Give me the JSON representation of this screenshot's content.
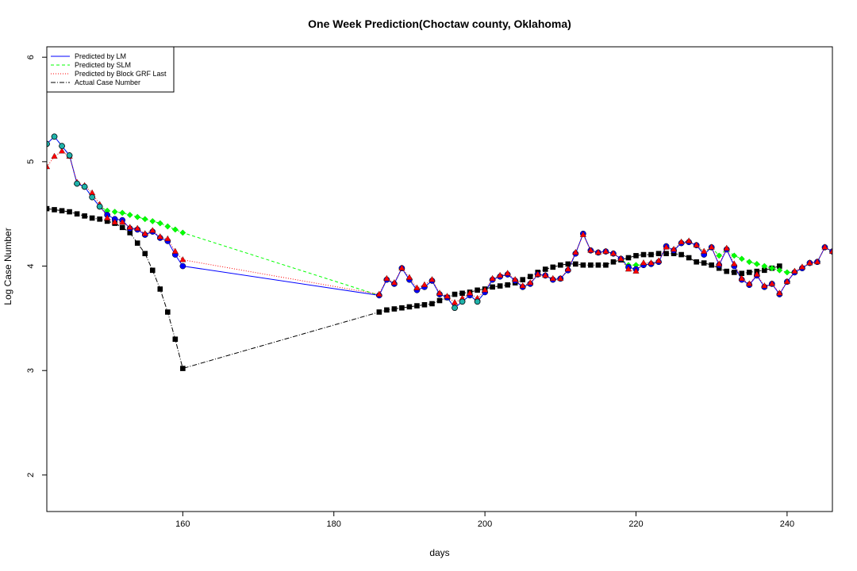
{
  "chart_data": {
    "type": "line",
    "title": "One Week Prediction(Choctaw county, Oklahoma)",
    "xlabel": "days",
    "ylabel": "Log Case Number",
    "xlim": [
      142,
      246
    ],
    "ylim": [
      1.65,
      6.1
    ],
    "xticks": [
      160,
      180,
      200,
      220,
      240
    ],
    "yticks": [
      2,
      3,
      4,
      5,
      6
    ],
    "legend_position": "top-left",
    "legend": [
      {
        "label": "Predicted by LM",
        "color": "#0000ff",
        "dash": "solid"
      },
      {
        "label": "Predicted by SLM",
        "color": "#00ff00",
        "dash": "dashed"
      },
      {
        "label": "Predicted by Block GRF Last",
        "color": "#ff0000",
        "dash": "dotted"
      },
      {
        "label": "Actual Case Number",
        "color": "#000000",
        "dash": "dotdash"
      }
    ],
    "series": [
      {
        "name": "Predicted by LM",
        "color": "#0000ff",
        "marker": "circle",
        "dash": "solid",
        "x": [
          142,
          143,
          144,
          145,
          146,
          147,
          148,
          149,
          150,
          151,
          152,
          153,
          154,
          155,
          156,
          157,
          158,
          159,
          160,
          186,
          187,
          188,
          189,
          190,
          191,
          192,
          193,
          194,
          195,
          196,
          197,
          198,
          199,
          200,
          201,
          202,
          203,
          204,
          205,
          206,
          207,
          208,
          209,
          210,
          211,
          212,
          213,
          214,
          215,
          216,
          217,
          218,
          219,
          220,
          221,
          222,
          223,
          224,
          225,
          226,
          227,
          228,
          229,
          230,
          231,
          232,
          233,
          234,
          235,
          236,
          237,
          238,
          239,
          240,
          241,
          242,
          243,
          244,
          245,
          246
        ],
        "y": [
          5.17,
          5.24,
          5.15,
          5.06,
          4.79,
          4.76,
          4.66,
          4.57,
          4.49,
          4.45,
          4.44,
          4.36,
          4.35,
          4.3,
          4.33,
          4.27,
          4.24,
          4.11,
          4.0,
          3.72,
          3.87,
          3.83,
          3.98,
          3.87,
          3.77,
          3.8,
          3.86,
          3.73,
          3.7,
          3.6,
          3.66,
          3.72,
          3.66,
          3.75,
          3.87,
          3.9,
          3.92,
          3.86,
          3.8,
          3.83,
          3.92,
          3.91,
          3.87,
          3.88,
          3.96,
          4.12,
          4.31,
          4.15,
          4.13,
          4.14,
          4.12,
          4.07,
          3.99,
          3.97,
          4.01,
          4.02,
          4.04,
          4.19,
          4.15,
          4.22,
          4.23,
          4.2,
          4.11,
          4.18,
          4.01,
          4.16,
          4.0,
          3.87,
          3.82,
          3.91,
          3.8,
          3.83,
          3.73,
          3.85,
          3.94,
          3.98,
          4.03,
          4.04,
          4.18,
          4.14
        ]
      },
      {
        "name": "Predicted by SLM",
        "color": "#00ff00",
        "marker": "diamond",
        "dash": "dashed",
        "x": [
          142,
          143,
          144,
          145,
          146,
          147,
          148,
          149,
          150,
          151,
          152,
          153,
          154,
          155,
          156,
          157,
          158,
          159,
          160,
          186,
          187,
          188,
          189,
          190,
          191,
          192,
          193,
          194,
          195,
          196,
          197,
          198,
          199,
          200,
          201,
          202,
          203,
          204,
          205,
          206,
          207,
          208,
          209,
          210,
          211,
          212,
          213,
          214,
          215,
          216,
          217,
          218,
          219,
          220,
          221,
          222,
          223,
          224,
          225,
          226,
          227,
          228,
          229,
          230,
          231,
          232,
          233,
          234,
          235,
          236,
          237,
          238,
          239,
          240,
          241,
          242,
          243,
          244,
          245,
          246
        ],
        "y": [
          5.17,
          5.24,
          5.15,
          5.06,
          4.79,
          4.76,
          4.66,
          4.57,
          4.53,
          4.52,
          4.51,
          4.49,
          4.47,
          4.45,
          4.43,
          4.41,
          4.38,
          4.35,
          4.32,
          3.72,
          3.87,
          3.83,
          3.98,
          3.87,
          3.77,
          3.8,
          3.86,
          3.73,
          3.7,
          3.6,
          3.66,
          3.72,
          3.66,
          3.75,
          3.87,
          3.9,
          3.92,
          3.86,
          3.8,
          3.83,
          3.92,
          3.91,
          3.87,
          3.88,
          3.96,
          4.12,
          4.31,
          4.15,
          4.13,
          4.14,
          4.12,
          4.07,
          4.01,
          4.01,
          4.01,
          4.02,
          4.04,
          4.19,
          4.15,
          4.22,
          4.23,
          4.2,
          4.12,
          4.18,
          4.1,
          4.16,
          4.1,
          4.07,
          4.04,
          4.02,
          4.0,
          3.98,
          3.96,
          3.94,
          3.94,
          3.98,
          4.03,
          4.04,
          4.18,
          4.14
        ]
      },
      {
        "name": "Predicted by Block GRF Last",
        "color": "#ff0000",
        "marker": "triangle",
        "dash": "dotted",
        "x": [
          142,
          143,
          144,
          145,
          146,
          147,
          148,
          149,
          150,
          151,
          152,
          153,
          154,
          155,
          156,
          157,
          158,
          159,
          160,
          186,
          187,
          188,
          189,
          190,
          191,
          192,
          193,
          194,
          195,
          196,
          197,
          198,
          199,
          200,
          201,
          202,
          203,
          204,
          205,
          206,
          207,
          208,
          209,
          210,
          211,
          212,
          213,
          214,
          215,
          216,
          217,
          218,
          219,
          220,
          221,
          222,
          223,
          224,
          225,
          226,
          227,
          228,
          229,
          230,
          231,
          232,
          233,
          234,
          235,
          236,
          237,
          238,
          239,
          240,
          241,
          242,
          243,
          244,
          245,
          246
        ],
        "y": [
          4.95,
          5.05,
          5.1,
          5.05,
          4.8,
          4.77,
          4.7,
          4.59,
          4.46,
          4.42,
          4.42,
          4.37,
          4.36,
          4.31,
          4.34,
          4.28,
          4.26,
          4.14,
          4.06,
          3.73,
          3.88,
          3.84,
          3.98,
          3.89,
          3.79,
          3.82,
          3.87,
          3.74,
          3.71,
          3.65,
          3.69,
          3.74,
          3.69,
          3.77,
          3.88,
          3.91,
          3.93,
          3.87,
          3.81,
          3.84,
          3.92,
          3.91,
          3.88,
          3.88,
          3.97,
          4.13,
          4.3,
          4.15,
          4.13,
          4.14,
          4.12,
          4.07,
          3.97,
          3.95,
          4.03,
          4.03,
          4.05,
          4.18,
          4.16,
          4.23,
          4.24,
          4.2,
          4.14,
          4.18,
          4.02,
          4.17,
          4.02,
          3.88,
          3.83,
          3.92,
          3.81,
          3.83,
          3.74,
          3.85,
          3.95,
          3.99,
          4.03,
          4.04,
          4.18,
          4.14
        ]
      },
      {
        "name": "Actual Case Number",
        "color": "#000000",
        "marker": "square",
        "dash": "dotdash",
        "x": [
          142,
          143,
          144,
          145,
          146,
          147,
          148,
          149,
          150,
          151,
          152,
          153,
          154,
          155,
          156,
          157,
          158,
          159,
          160,
          186,
          187,
          188,
          189,
          190,
          191,
          192,
          193,
          194,
          195,
          196,
          197,
          198,
          199,
          200,
          201,
          202,
          203,
          204,
          205,
          206,
          207,
          208,
          209,
          210,
          211,
          212,
          213,
          214,
          215,
          216,
          217,
          218,
          219,
          220,
          221,
          222,
          223,
          224,
          225,
          226,
          227,
          228,
          229,
          230,
          231,
          232,
          233,
          234,
          235,
          236,
          237,
          238,
          239
        ],
        "y": [
          4.55,
          4.54,
          4.53,
          4.52,
          4.5,
          4.48,
          4.46,
          4.45,
          4.43,
          4.41,
          4.37,
          4.32,
          4.22,
          4.12,
          3.96,
          3.78,
          3.56,
          3.3,
          3.02,
          3.56,
          3.58,
          3.59,
          3.6,
          3.61,
          3.62,
          3.63,
          3.64,
          3.67,
          3.7,
          3.73,
          3.74,
          3.75,
          3.77,
          3.78,
          3.8,
          3.81,
          3.82,
          3.84,
          3.87,
          3.9,
          3.94,
          3.97,
          3.99,
          4.01,
          4.02,
          4.02,
          4.01,
          4.01,
          4.01,
          4.01,
          4.04,
          4.06,
          4.08,
          4.1,
          4.11,
          4.11,
          4.12,
          4.12,
          4.12,
          4.11,
          4.08,
          4.04,
          4.03,
          4.01,
          3.98,
          3.95,
          3.94,
          3.93,
          3.94,
          3.95,
          3.96,
          3.98,
          4.0
        ]
      }
    ]
  }
}
